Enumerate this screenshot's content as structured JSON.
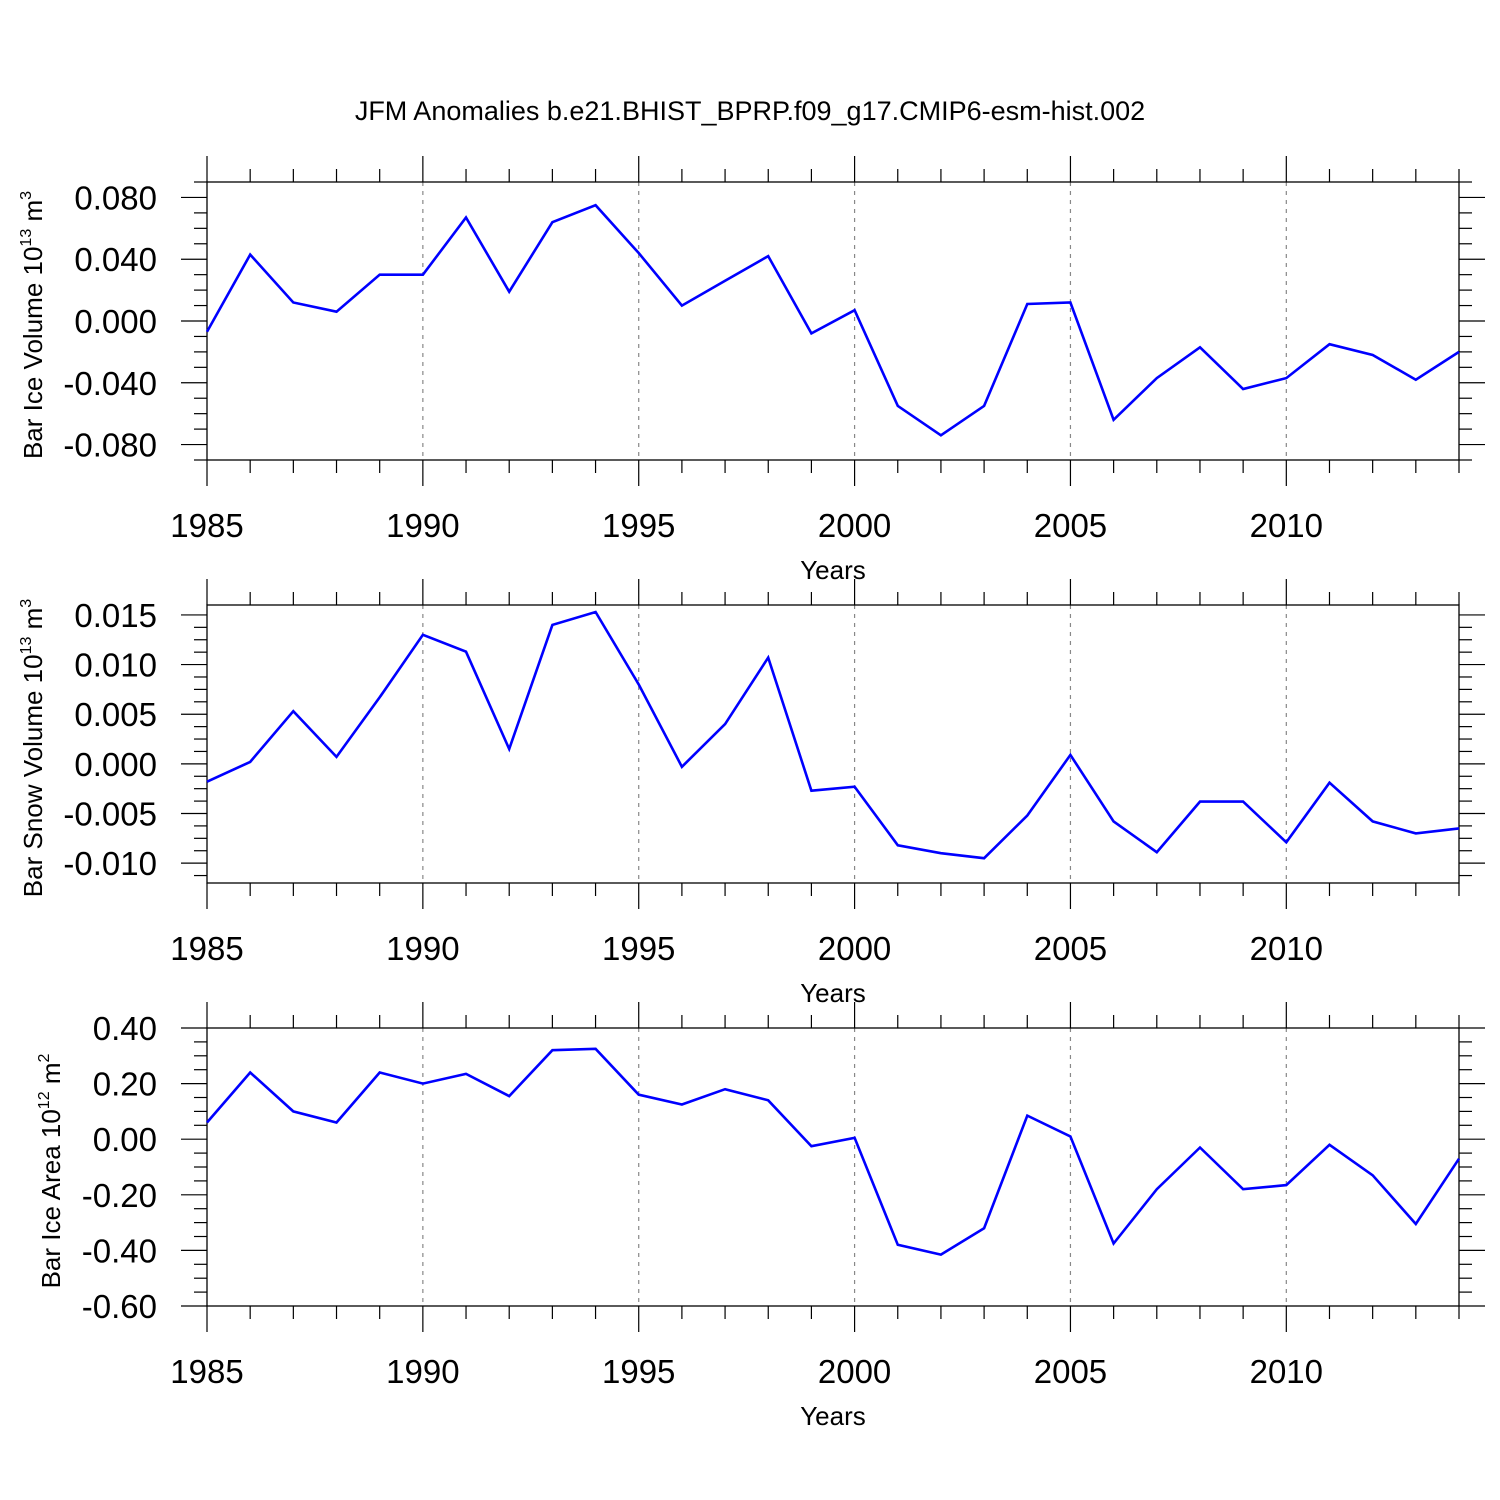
{
  "title": "JFM Anomalies b.e21.BHIST_BPRP.f09_g17.CMIP6-esm-hist.002",
  "colors": {
    "line": "#0000ff",
    "grid": "#888888",
    "frame": "#000000"
  },
  "chart_data": [
    {
      "type": "line",
      "xlabel": "Years",
      "ylabel": {
        "prefix": "Bar Ice Volume 10",
        "exp": "13",
        "unit": " m",
        "unit_exp": "3"
      },
      "xlim": [
        1985,
        2014
      ],
      "ylim": [
        -0.09,
        0.09
      ],
      "xticks": [
        "1985",
        "1990",
        "1995",
        "2000",
        "2005",
        "2010"
      ],
      "yticks": [
        "-0.080",
        "-0.040",
        "0.000",
        "0.040",
        "0.080"
      ],
      "grid": "vertical dashed at major x ticks",
      "x": [
        1985,
        1986,
        1987,
        1988,
        1989,
        1990,
        1991,
        1992,
        1993,
        1994,
        1995,
        1996,
        1997,
        1998,
        1999,
        2000,
        2001,
        2002,
        2003,
        2004,
        2005,
        2006,
        2007,
        2008,
        2009,
        2010,
        2011,
        2012,
        2013,
        2014
      ],
      "series": [
        {
          "values": [
            -0.007,
            0.043,
            0.012,
            0.006,
            0.03,
            0.03,
            0.067,
            0.019,
            0.064,
            0.075,
            0.044,
            0.01,
            0.026,
            0.042,
            -0.008,
            0.007,
            -0.055,
            -0.074,
            -0.055,
            0.011,
            0.012,
            -0.064,
            -0.037,
            -0.017,
            -0.044,
            -0.037,
            -0.015,
            -0.022,
            -0.038,
            -0.02
          ]
        }
      ]
    },
    {
      "type": "line",
      "xlabel": "Years",
      "ylabel": {
        "prefix": "Bar Snow Volume 10",
        "exp": "13",
        "unit": " m",
        "unit_exp": "3"
      },
      "xlim": [
        1985,
        2014
      ],
      "ylim": [
        -0.012,
        0.016
      ],
      "xticks": [
        "1985",
        "1990",
        "1995",
        "2000",
        "2005",
        "2010"
      ],
      "yticks": [
        "-0.010",
        "-0.005",
        "0.000",
        "0.005",
        "0.010",
        "0.015"
      ],
      "grid": "vertical dashed at major x ticks",
      "x": [
        1985,
        1986,
        1987,
        1988,
        1989,
        1990,
        1991,
        1992,
        1993,
        1994,
        1995,
        1996,
        1997,
        1998,
        1999,
        2000,
        2001,
        2002,
        2003,
        2004,
        2005,
        2006,
        2007,
        2008,
        2009,
        2010,
        2011,
        2012,
        2013,
        2014
      ],
      "series": [
        {
          "values": [
            -0.0018,
            0.0002,
            0.0053,
            0.0007,
            0.0067,
            0.013,
            0.0113,
            0.0015,
            0.014,
            0.0153,
            0.008,
            -0.0003,
            0.004,
            0.0107,
            -0.0027,
            -0.0023,
            -0.0082,
            -0.009,
            -0.0095,
            -0.0052,
            0.0009,
            -0.0058,
            -0.0089,
            -0.0038,
            -0.0038,
            -0.0079,
            -0.0019,
            -0.0058,
            -0.007,
            -0.0065
          ]
        }
      ]
    },
    {
      "type": "line",
      "xlabel": "Years",
      "ylabel": {
        "prefix": "Bar Ice Area 10",
        "exp": "12",
        "unit": " m",
        "unit_exp": "2"
      },
      "xlim": [
        1985,
        2014
      ],
      "ylim": [
        -0.6,
        0.4
      ],
      "xticks": [
        "1985",
        "1990",
        "1995",
        "2000",
        "2005",
        "2010"
      ],
      "yticks": [
        "-0.60",
        "-0.40",
        "-0.20",
        "0.00",
        "0.20",
        "0.40"
      ],
      "grid": "vertical dashed at major x ticks",
      "x": [
        1985,
        1986,
        1987,
        1988,
        1989,
        1990,
        1991,
        1992,
        1993,
        1994,
        1995,
        1996,
        1997,
        1998,
        1999,
        2000,
        2001,
        2002,
        2003,
        2004,
        2005,
        2006,
        2007,
        2008,
        2009,
        2010,
        2011,
        2012,
        2013,
        2014
      ],
      "series": [
        {
          "values": [
            0.06,
            0.24,
            0.1,
            0.06,
            0.24,
            0.2,
            0.235,
            0.155,
            0.32,
            0.325,
            0.16,
            0.125,
            0.18,
            0.14,
            -0.025,
            0.005,
            -0.38,
            -0.415,
            -0.32,
            0.085,
            0.01,
            -0.375,
            -0.18,
            -0.03,
            -0.18,
            -0.165,
            -0.02,
            -0.13,
            -0.305,
            -0.07
          ]
        }
      ]
    }
  ]
}
